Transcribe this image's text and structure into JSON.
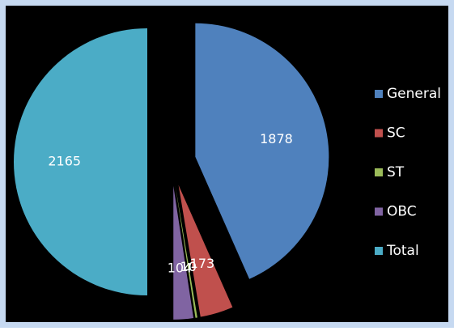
{
  "chart_data": {
    "type": "pie",
    "categories": [
      "General",
      "SC",
      "ST",
      "OBC",
      "Total"
    ],
    "values": [
      1878,
      173,
      10,
      104,
      2165
    ],
    "colors": [
      "#4f81bd",
      "#c0504d",
      "#9bbb59",
      "#8064a2",
      "#4bacc6"
    ],
    "legend": "right"
  }
}
